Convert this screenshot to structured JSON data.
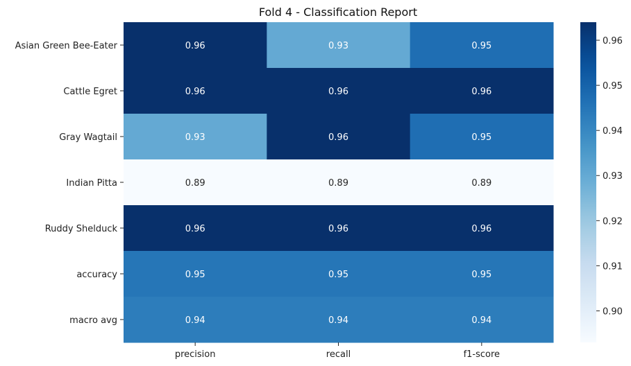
{
  "chart_data": {
    "type": "heatmap",
    "title": "Fold 4 - Classification Report",
    "colormap": "Blues",
    "x_labels": [
      "precision",
      "recall",
      "f1-score"
    ],
    "y_labels": [
      "Asian Green Bee-Eater",
      "Cattle Egret",
      "Gray Wagtail",
      "Indian Pitta",
      "Ruddy Shelduck",
      "accuracy",
      "macro avg"
    ],
    "values": [
      [
        0.964,
        0.93,
        0.947
      ],
      [
        0.964,
        0.964,
        0.964
      ],
      [
        0.93,
        0.964,
        0.947
      ],
      [
        0.893,
        0.893,
        0.893
      ],
      [
        0.964,
        0.964,
        0.964
      ],
      [
        0.945,
        0.945,
        0.945
      ],
      [
        0.943,
        0.943,
        0.943
      ]
    ],
    "annotations": [
      [
        "0.96",
        "0.93",
        "0.95"
      ],
      [
        "0.96",
        "0.96",
        "0.96"
      ],
      [
        "0.93",
        "0.96",
        "0.95"
      ],
      [
        "0.89",
        "0.89",
        "0.89"
      ],
      [
        "0.96",
        "0.96",
        "0.96"
      ],
      [
        "0.95",
        "0.95",
        "0.95"
      ],
      [
        "0.94",
        "0.94",
        "0.94"
      ]
    ],
    "colorbar": {
      "range": [
        0.893,
        0.964
      ],
      "ticks": [
        0.9,
        0.91,
        0.92,
        0.93,
        0.94,
        0.95,
        0.96
      ],
      "tick_labels": [
        "0.90",
        "0.91",
        "0.92",
        "0.93",
        "0.94",
        "0.95",
        "0.96"
      ]
    },
    "grid": false
  }
}
